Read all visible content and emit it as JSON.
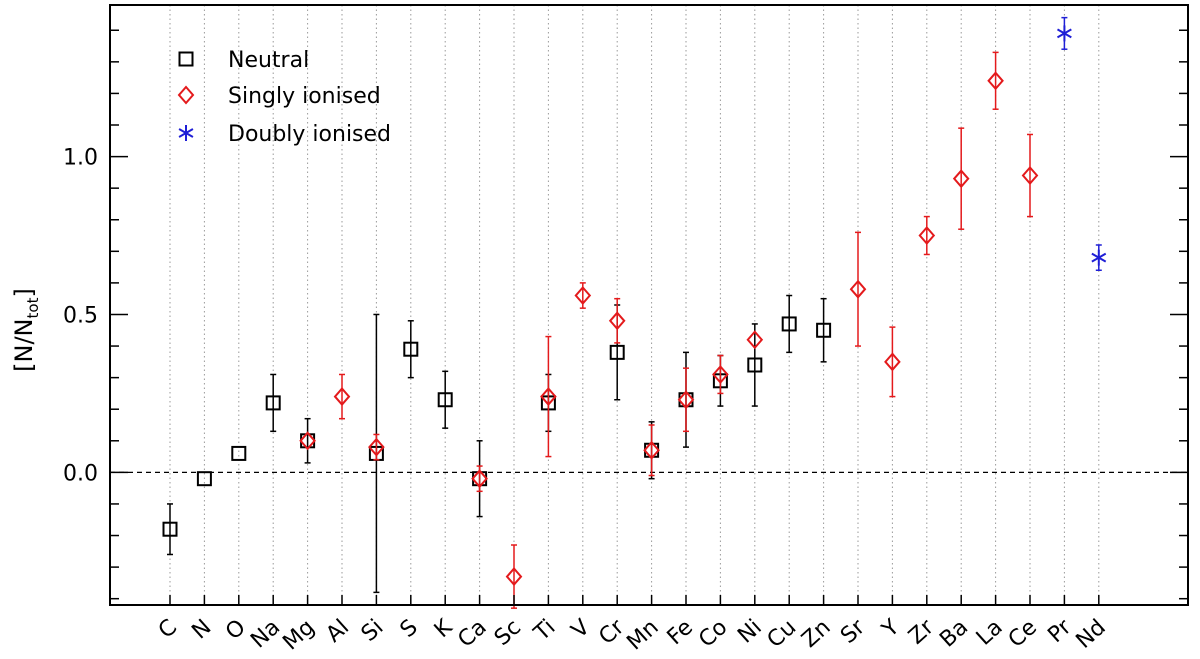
{
  "chart_data": {
    "type": "scatter",
    "title": "",
    "xlabel": "",
    "ylabel": {
      "main": "[N/N",
      "sub": "tot",
      "close": "]"
    },
    "ylim": [
      -0.42,
      1.48
    ],
    "yticks": [
      {
        "value": 0.0,
        "label": "0.0"
      },
      {
        "value": 0.5,
        "label": "0.5"
      },
      {
        "value": 1.0,
        "label": "1.0"
      }
    ],
    "reference_line": {
      "y": 0.0,
      "style": "dashed"
    },
    "grid": "vertical-dotted",
    "legend_position": "top-left",
    "categories": [
      "C",
      "N",
      "O",
      "Na",
      "Mg",
      "Al",
      "Si",
      "S",
      "K",
      "Ca",
      "Sc",
      "Ti",
      "V",
      "Cr",
      "Mn",
      "Fe",
      "Co",
      "Ni",
      "Cu",
      "Zn",
      "Sr",
      "Y",
      "Zr",
      "Ba",
      "La",
      "Ce",
      "Pr",
      "Nd"
    ],
    "series": [
      {
        "name": "Neutral",
        "marker": "square",
        "color": "#000000",
        "points": [
          {
            "x": "C",
            "y": -0.18,
            "err_low": 0.08,
            "err_high": 0.08
          },
          {
            "x": "N",
            "y": -0.02,
            "err_low": 0.0,
            "err_high": 0.0
          },
          {
            "x": "O",
            "y": 0.06,
            "err_low": 0.0,
            "err_high": 0.0
          },
          {
            "x": "Na",
            "y": 0.22,
            "err_low": 0.09,
            "err_high": 0.09
          },
          {
            "x": "Mg",
            "y": 0.1,
            "err_low": 0.07,
            "err_high": 0.07
          },
          {
            "x": "Si",
            "y": 0.06,
            "err_low": 0.44,
            "err_high": 0.44
          },
          {
            "x": "S",
            "y": 0.39,
            "err_low": 0.09,
            "err_high": 0.09
          },
          {
            "x": "K",
            "y": 0.23,
            "err_low": 0.09,
            "err_high": 0.09
          },
          {
            "x": "Ca",
            "y": -0.02,
            "err_low": 0.12,
            "err_high": 0.12
          },
          {
            "x": "Ti",
            "y": 0.22,
            "err_low": 0.09,
            "err_high": 0.09
          },
          {
            "x": "Cr",
            "y": 0.38,
            "err_low": 0.15,
            "err_high": 0.15
          },
          {
            "x": "Mn",
            "y": 0.07,
            "err_low": 0.09,
            "err_high": 0.09
          },
          {
            "x": "Fe",
            "y": 0.23,
            "err_low": 0.15,
            "err_high": 0.15
          },
          {
            "x": "Co",
            "y": 0.29,
            "err_low": 0.08,
            "err_high": 0.08
          },
          {
            "x": "Ni",
            "y": 0.34,
            "err_low": 0.13,
            "err_high": 0.13
          },
          {
            "x": "Cu",
            "y": 0.47,
            "err_low": 0.09,
            "err_high": 0.09
          },
          {
            "x": "Zn",
            "y": 0.45,
            "err_low": 0.1,
            "err_high": 0.1
          }
        ]
      },
      {
        "name": "Singly ionised",
        "marker": "diamond",
        "color": "#e41a1c",
        "points": [
          {
            "x": "Mg",
            "y": 0.1,
            "err_low": 0.0,
            "err_high": 0.0
          },
          {
            "x": "Al",
            "y": 0.24,
            "err_low": 0.07,
            "err_high": 0.07
          },
          {
            "x": "Si",
            "y": 0.08,
            "err_low": 0.04,
            "err_high": 0.04
          },
          {
            "x": "Ca",
            "y": -0.02,
            "err_low": 0.04,
            "err_high": 0.04
          },
          {
            "x": "Sc",
            "y": -0.33,
            "err_low": 0.1,
            "err_high": 0.1
          },
          {
            "x": "Ti",
            "y": 0.24,
            "err_low": 0.19,
            "err_high": 0.19
          },
          {
            "x": "V",
            "y": 0.56,
            "err_low": 0.04,
            "err_high": 0.04
          },
          {
            "x": "Cr",
            "y": 0.48,
            "err_low": 0.07,
            "err_high": 0.07
          },
          {
            "x": "Mn",
            "y": 0.07,
            "err_low": 0.08,
            "err_high": 0.08
          },
          {
            "x": "Fe",
            "y": 0.23,
            "err_low": 0.1,
            "err_high": 0.1
          },
          {
            "x": "Co",
            "y": 0.31,
            "err_low": 0.06,
            "err_high": 0.06
          },
          {
            "x": "Ni",
            "y": 0.42,
            "err_low": 0.0,
            "err_high": 0.0
          },
          {
            "x": "Sr",
            "y": 0.58,
            "err_low": 0.18,
            "err_high": 0.18
          },
          {
            "x": "Y",
            "y": 0.35,
            "err_low": 0.11,
            "err_high": 0.11
          },
          {
            "x": "Zr",
            "y": 0.75,
            "err_low": 0.06,
            "err_high": 0.06
          },
          {
            "x": "Ba",
            "y": 0.93,
            "err_low": 0.16,
            "err_high": 0.16
          },
          {
            "x": "La",
            "y": 1.24,
            "err_low": 0.09,
            "err_high": 0.09
          },
          {
            "x": "Ce",
            "y": 0.94,
            "err_low": 0.13,
            "err_high": 0.13
          }
        ]
      },
      {
        "name": "Doubly ionised",
        "marker": "asterisk",
        "color": "#1f1fd6",
        "points": [
          {
            "x": "Pr",
            "y": 1.39,
            "err_low": 0.05,
            "err_high": 0.05
          },
          {
            "x": "Nd",
            "y": 0.68,
            "err_low": 0.04,
            "err_high": 0.04
          }
        ]
      }
    ]
  }
}
